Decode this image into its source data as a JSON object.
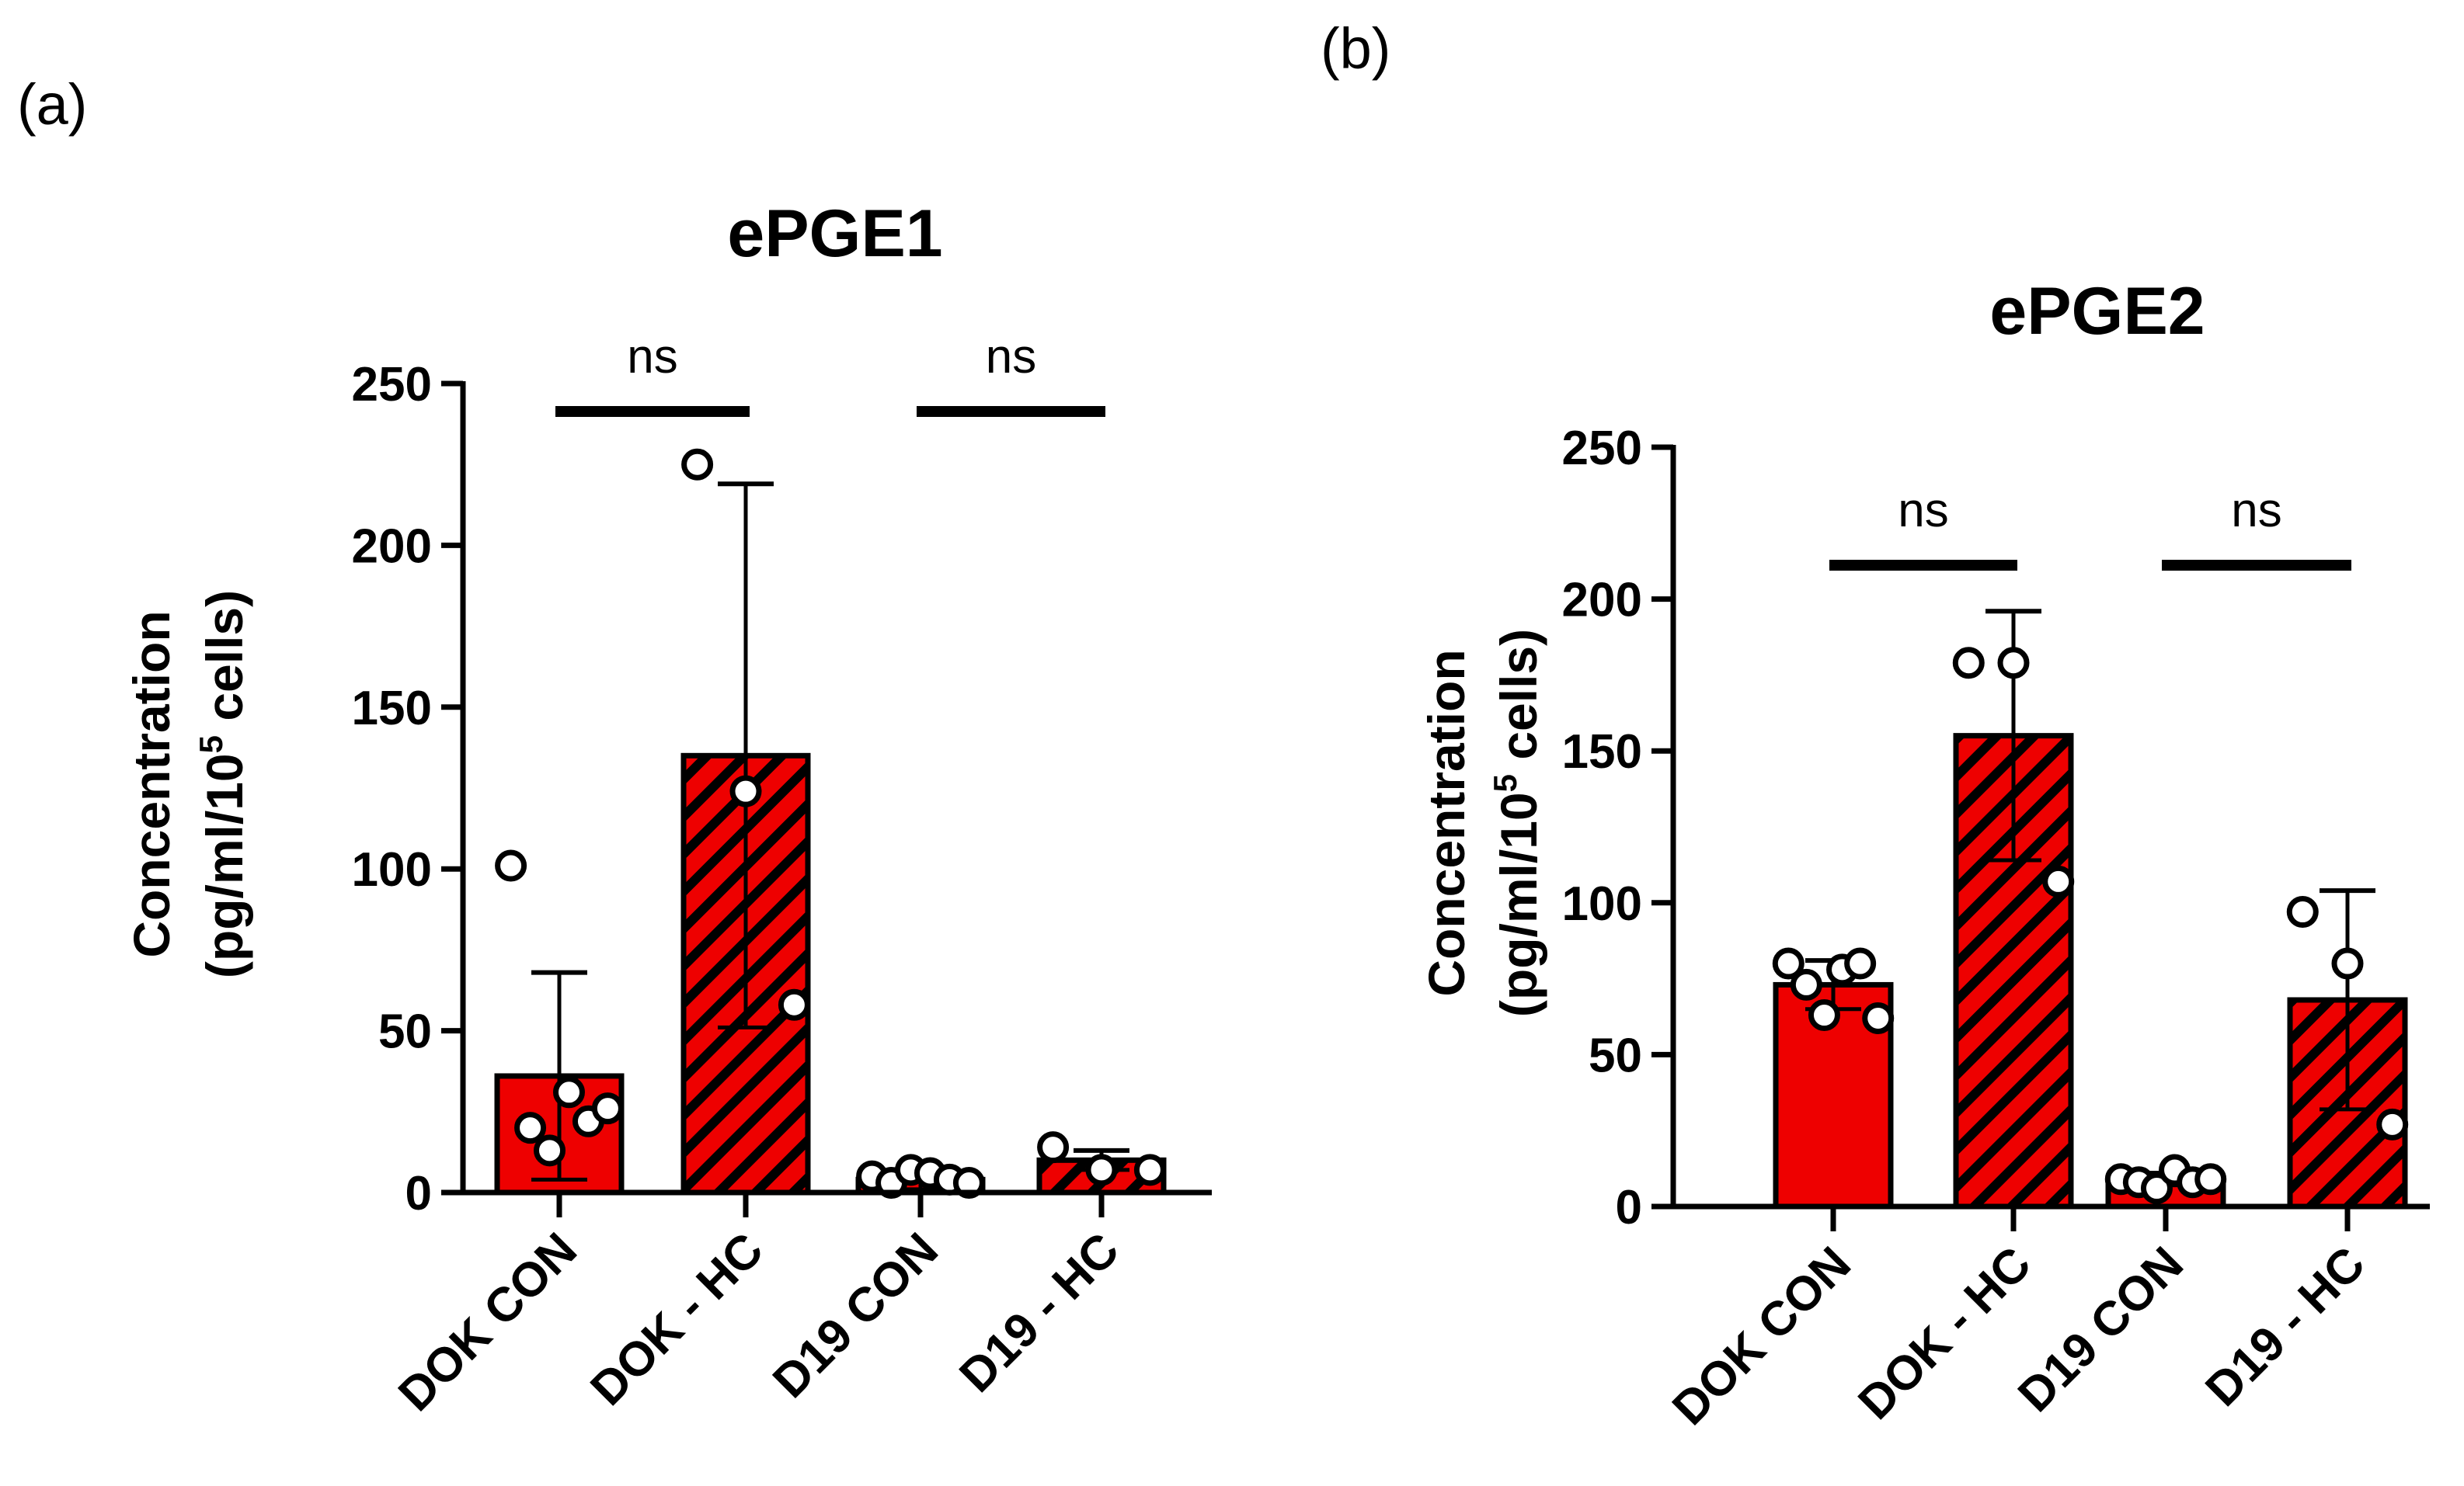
{
  "panel_labels": [
    "(a)",
    "(b)"
  ],
  "chart_data": [
    {
      "type": "bar",
      "title": "ePGE1",
      "panel": "(a)",
      "ylabel_line1": "Concentration",
      "ylabel_line2_prefix": "(pg/ml/10",
      "ylabel_sup": "5",
      "ylabel_line2_suffix": " cells)",
      "xlabel": "",
      "ylim": [
        0,
        250
      ],
      "yticks": [
        0,
        50,
        100,
        150,
        200,
        250
      ],
      "categories": [
        "DOK CON",
        "DOK - HC",
        "D19 CON",
        "D19 - HC"
      ],
      "values": [
        36,
        135,
        4,
        10
      ],
      "errors": [
        32,
        84,
        3,
        3
      ],
      "points": [
        [
          101,
          20,
          13,
          31,
          22,
          26
        ],
        [
          225,
          124,
          58
        ],
        [
          5,
          3,
          7,
          6,
          4,
          3
        ],
        [
          14,
          7,
          7
        ]
      ],
      "hatched": [
        false,
        true,
        false,
        true
      ],
      "comparisons": [
        {
          "from": 0,
          "to": 1,
          "label": "ns"
        },
        {
          "from": 2,
          "to": 3,
          "label": "ns"
        }
      ],
      "colors": {
        "bar": "#ee0000",
        "hatch": "#000000"
      }
    },
    {
      "type": "bar",
      "title": "ePGE2",
      "panel": "(b)",
      "ylabel_line1": "Concentration",
      "ylabel_line2_prefix": "(pg/ml/10",
      "ylabel_sup": "5",
      "ylabel_line2_suffix": " cells)",
      "xlabel": "",
      "ylim": [
        0,
        250
      ],
      "yticks": [
        0,
        50,
        100,
        150,
        200,
        250
      ],
      "categories": [
        "DOK CON",
        "DOK - HC",
        "D19 CON",
        "D19 - HC"
      ],
      "values": [
        73,
        155,
        9,
        68
      ],
      "errors": [
        8,
        41,
        2,
        36
      ],
      "points": [
        [
          80,
          73,
          63,
          78,
          80,
          62
        ],
        [
          179,
          179,
          107
        ],
        [
          9,
          8,
          6,
          12,
          8,
          9
        ],
        [
          97,
          80,
          27
        ]
      ],
      "hatched": [
        false,
        true,
        false,
        true
      ],
      "comparisons": [
        {
          "from": 0,
          "to": 1,
          "label": "ns"
        },
        {
          "from": 2,
          "to": 3,
          "label": "ns"
        }
      ],
      "colors": {
        "bar": "#ee0000",
        "hatch": "#000000"
      }
    }
  ]
}
